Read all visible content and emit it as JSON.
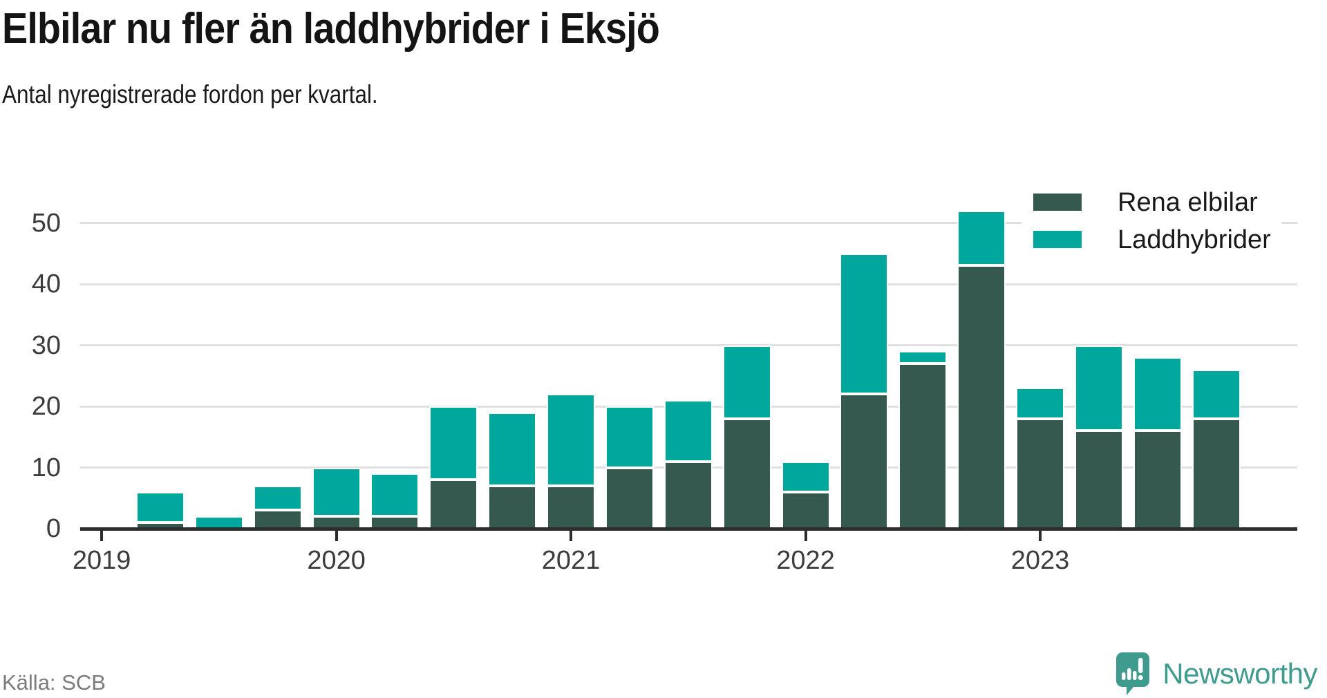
{
  "title": "Elbilar nu fler än laddhybrider i Eksjö",
  "subtitle": "Antal nyregistrerade fordon per kvartal.",
  "source": "Källa: SCB",
  "brand": {
    "name": "Newsworthy",
    "color": "#3f9b8e",
    "icon": "speech-bubble-bar-chart-icon"
  },
  "legend": [
    {
      "label": "Rena elbilar",
      "color": "#35594f"
    },
    {
      "label": "Laddhybrider",
      "color": "#00a79c"
    }
  ],
  "colors": {
    "dark_series": "#35594f",
    "teal_series": "#00a79c",
    "axis": "#2d2d2d",
    "gridline": "#e0e0e0",
    "tick_text": "#3c3c3c",
    "heading_text": "#141414",
    "muted_text": "#7b7b7b",
    "background": "#ffffff"
  },
  "chart_data": {
    "type": "bar",
    "stacked": true,
    "title": "Elbilar nu fler än laddhybrider i Eksjö",
    "subtitle": "Antal nyregistrerade fordon per kvartal.",
    "x": [
      "2019-Q2",
      "2019-Q3",
      "2019-Q4",
      "2020-Q1",
      "2020-Q2",
      "2020-Q3",
      "2020-Q4",
      "2021-Q1",
      "2021-Q2",
      "2021-Q3",
      "2021-Q4",
      "2022-Q1",
      "2022-Q2",
      "2022-Q3",
      "2022-Q4",
      "2023-Q1",
      "2023-Q2",
      "2023-Q3",
      "2023-Q4"
    ],
    "series": [
      {
        "name": "Rena elbilar",
        "color": "#35594f",
        "values": [
          1,
          0,
          3,
          2,
          2,
          8,
          7,
          7,
          10,
          11,
          18,
          6,
          22,
          27,
          43,
          18,
          16,
          16,
          18
        ]
      },
      {
        "name": "Laddhybrider",
        "color": "#00a79c",
        "values": [
          5,
          2,
          4,
          8,
          7,
          12,
          12,
          15,
          10,
          10,
          12,
          5,
          23,
          2,
          9,
          5,
          14,
          12,
          8
        ]
      }
    ],
    "totals": [
      6,
      2,
      7,
      10,
      9,
      20,
      19,
      22,
      20,
      21,
      30,
      11,
      45,
      29,
      52,
      23,
      30,
      28,
      26
    ],
    "x_ticks": [
      "2019",
      "2020",
      "2021",
      "2022",
      "2023"
    ],
    "y_ticks": [
      0,
      10,
      20,
      30,
      40,
      50
    ],
    "ylim": [
      0,
      55
    ],
    "grid": true,
    "legend_position": "top-right"
  }
}
